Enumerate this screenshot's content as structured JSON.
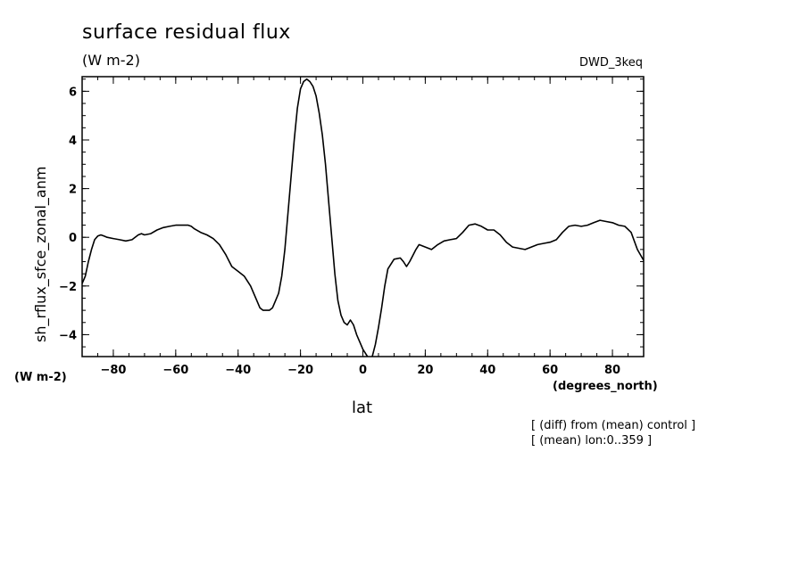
{
  "chart_data": {
    "type": "line",
    "title": "surface residual flux",
    "units": "(W m-2)",
    "run_label": "DWD_3keq",
    "ylabel": "sh_rflux_sfce_zonal_anm",
    "ylabel_units": "(W m-2)",
    "xlabel": "lat",
    "xlabel_units": "(degrees_north)",
    "notes": [
      "[ (diff) from (mean) control ]",
      "[ (mean) lon:0..359 ]"
    ],
    "xlim": [
      -90,
      90
    ],
    "ylim": [
      -4.9,
      6.6
    ],
    "x_ticks": [
      -80,
      -60,
      -40,
      -20,
      0,
      20,
      40,
      60,
      80
    ],
    "x_tick_labels": [
      "−80",
      "−60",
      "−40",
      "−20",
      "0",
      "20",
      "40",
      "60",
      "80"
    ],
    "y_ticks": [
      -4,
      -2,
      0,
      2,
      4,
      6
    ],
    "y_tick_labels": [
      "−4",
      "−2",
      "0",
      "2",
      "4",
      "6"
    ],
    "grid": false,
    "line_color": "#000000",
    "series": [
      {
        "x": [
          -90,
          -89,
          -88,
          -87,
          -86,
          -85,
          -84,
          -83,
          -82,
          -80,
          -78,
          -76,
          -74,
          -72,
          -71,
          -70,
          -68,
          -66,
          -64,
          -62,
          -60,
          -58,
          -56,
          -55,
          -54,
          -52,
          -50,
          -48,
          -46,
          -44,
          -42,
          -40,
          -38,
          -36,
          -34,
          -33,
          -32,
          -31,
          -30,
          -29,
          -28,
          -27,
          -26,
          -25,
          -24,
          -23,
          -22,
          -21,
          -20,
          -19,
          -18,
          -17,
          -16,
          -15,
          -14,
          -13,
          -12,
          -11,
          -10,
          -9,
          -8,
          -7,
          -6,
          -5,
          -4,
          -3,
          -2,
          -1,
          0,
          1,
          2,
          3,
          4,
          5,
          6,
          7,
          8,
          10,
          12,
          13,
          14,
          15,
          16,
          17,
          18,
          20,
          22,
          24,
          26,
          28,
          30,
          32,
          34,
          36,
          38,
          40,
          42,
          44,
          46,
          48,
          50,
          52,
          54,
          56,
          58,
          60,
          62,
          64,
          66,
          68,
          70,
          72,
          74,
          76,
          78,
          80,
          82,
          84,
          86,
          88,
          90
        ],
        "y": [
          -1.9,
          -1.6,
          -1.0,
          -0.5,
          -0.1,
          0.05,
          0.1,
          0.05,
          0.0,
          -0.05,
          -0.1,
          -0.15,
          -0.1,
          0.1,
          0.15,
          0.1,
          0.15,
          0.3,
          0.4,
          0.45,
          0.5,
          0.5,
          0.5,
          0.45,
          0.35,
          0.2,
          0.1,
          -0.05,
          -0.3,
          -0.7,
          -1.2,
          -1.4,
          -1.6,
          -2.0,
          -2.6,
          -2.9,
          -3.0,
          -3.0,
          -3.0,
          -2.9,
          -2.6,
          -2.3,
          -1.6,
          -0.5,
          1.0,
          2.5,
          4.0,
          5.3,
          6.1,
          6.4,
          6.5,
          6.4,
          6.2,
          5.8,
          5.1,
          4.2,
          3.0,
          1.5,
          0.0,
          -1.5,
          -2.6,
          -3.2,
          -3.5,
          -3.6,
          -3.4,
          -3.6,
          -4.0,
          -4.3,
          -4.6,
          -4.8,
          -5.0,
          -4.9,
          -4.4,
          -3.7,
          -2.9,
          -2.0,
          -1.3,
          -0.9,
          -0.85,
          -1.0,
          -1.2,
          -1.0,
          -0.75,
          -0.5,
          -0.3,
          -0.4,
          -0.5,
          -0.3,
          -0.15,
          -0.1,
          -0.05,
          0.2,
          0.5,
          0.55,
          0.45,
          0.3,
          0.3,
          0.1,
          -0.2,
          -0.4,
          -0.45,
          -0.5,
          -0.4,
          -0.3,
          -0.25,
          -0.2,
          -0.1,
          0.2,
          0.45,
          0.5,
          0.45,
          0.5,
          0.6,
          0.7,
          0.65,
          0.6,
          0.5,
          0.45,
          0.2,
          -0.5,
          -0.95
        ]
      }
    ]
  }
}
